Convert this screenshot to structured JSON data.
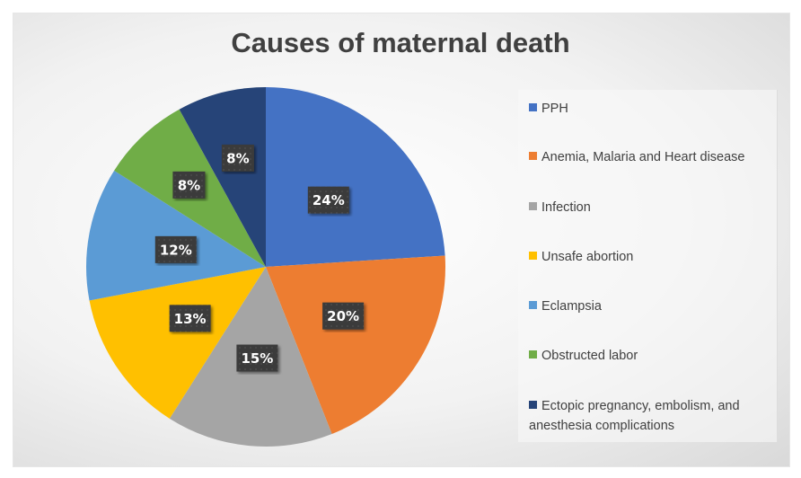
{
  "chart_data": {
    "type": "pie",
    "title": "Causes of maternal death",
    "categories": [
      "PPH",
      "Anemia, Malaria and Heart disease",
      "Infection",
      "Unsafe abortion",
      "Eclampsia",
      "Obstructed labor",
      "Ectopic pregnancy, embolism, and anesthesia complications"
    ],
    "values": [
      24,
      20,
      15,
      13,
      12,
      8,
      8
    ],
    "data_labels": [
      "24%",
      "20%",
      "15%",
      "13%",
      "12%",
      "8%",
      "8%"
    ],
    "colors": [
      "#4472C4",
      "#ED7D31",
      "#A5A5A5",
      "#FFC000",
      "#5B9BD5",
      "#70AD47",
      "#264478"
    ],
    "start_angle": "top, clockwise",
    "legend_position": "right"
  }
}
